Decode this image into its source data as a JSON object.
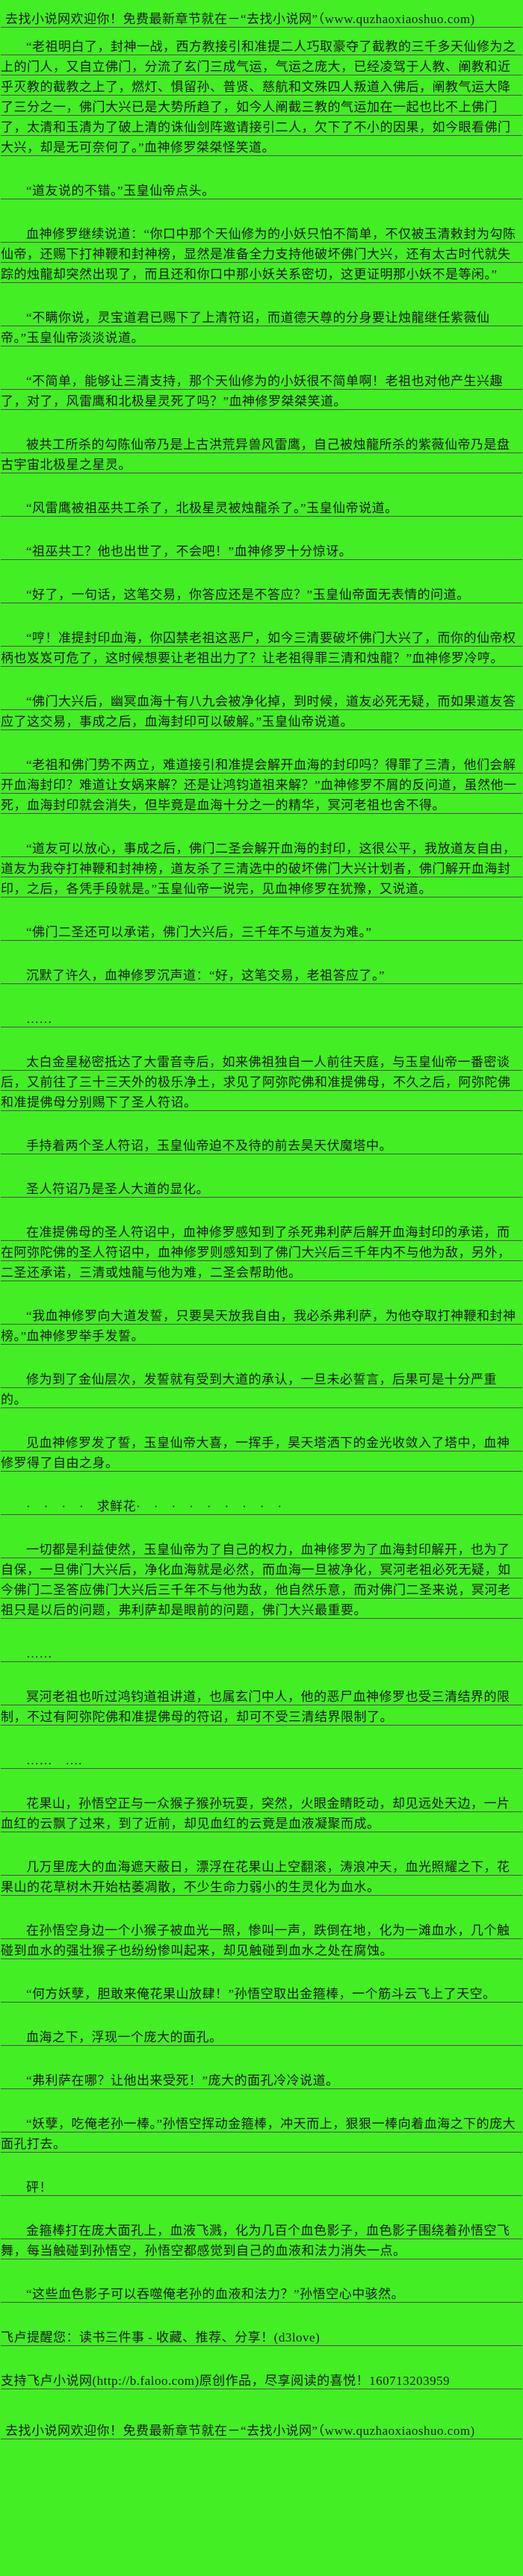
{
  "page": {
    "background_color": "#43ee24",
    "text_color": "#1c1c1c",
    "underline_color": "#4f4f4f"
  },
  "site_banner": {
    "text": "去找小说网欢迎你！免费最新章节就在－“去找小说网”（www.quzhaoxiaoshuo.com)"
  },
  "paragraphs": [
    {
      "indent": true,
      "text": "“老祖明白了，封神一战，西方教接引和准提二人巧取豪夺了截教的三千多天仙修为之上的门人，又自立佛门，分流了玄门三成气运，气运之庞大，已经凌驾于人教、阐教和近乎灭教的截教之上了，燃灯、惧留孙、普贤、慈航和文殊四人叛道入佛后，阐教气运大降了三分之一，佛门大兴已是大势所趋了，如今人阐截三教的气运加在一起也比不上佛门了，太清和玉清为了破上清的诛仙剑阵邀请接引二人，欠下了不小的因果，如今眼看佛门大兴，却是无可奈何了。”血神修罗桀桀怪笑道。"
    },
    {
      "indent": true,
      "text": "“道友说的不错。”玉皇仙帝点头。"
    },
    {
      "indent": true,
      "text": "血神修罗继续说道：“你口中那个天仙修为的小妖只怕不简单，不仅被玉清敕封为勾陈仙帝，还赐下打神鞭和封神榜，显然是准备全力支持他破坏佛门大兴，还有太古时代就失踪的烛龍却突然出现了，而且还和你口中那小妖关系密切，这更证明那小妖不是等闲。”"
    },
    {
      "indent": true,
      "text": "“不瞒你说，灵宝道君已赐下了上清符诏，而道德天尊的分身要让烛龍继任紫薇仙帝。”玉皇仙帝淡淡说道。"
    },
    {
      "indent": true,
      "text": "“不简单，能够让三清支持，那个天仙修为的小妖很不简单啊！老祖也对他产生兴趣了，对了，风雷鹰和北极星灵死了吗？”血神修罗桀桀笑道。"
    },
    {
      "indent": true,
      "text": "被共工所杀的勾陈仙帝乃是上古洪荒异兽风雷鹰，自己被烛龍所杀的紫薇仙帝乃是盘古宇宙北极星之星灵。"
    },
    {
      "indent": true,
      "text": "“风雷鹰被祖巫共工杀了，北极星灵被烛龍杀了。”玉皇仙帝说道。"
    },
    {
      "indent": true,
      "text": "“祖巫共工？他也出世了，不会吧！”血神修罗十分惊讶。"
    },
    {
      "indent": true,
      "text": "“好了，一句话，这笔交易，你答应还是不答应？”玉皇仙帝面无表情的问道。"
    },
    {
      "indent": true,
      "text": "“哼！准提封印血海，你囚禁老祖这恶尸，如今三清要破坏佛门大兴了，而你的仙帝权柄也岌岌可危了，这时候想要让老祖出力了？让老祖得罪三清和烛龍？”血神修罗冷哼。"
    },
    {
      "indent": true,
      "text": "“佛门大兴后，幽冥血海十有八九会被净化掉，到时候，道友必死无疑，而如果道友答应了这交易，事成之后，血海封印可以破解。”玉皇仙帝说道。"
    },
    {
      "indent": true,
      "text": "“老祖和佛门势不两立，难道接引和准提会解开血海的封印吗？得罪了三清，他们会解开血海封印？难道让女娲来解？还是让鸿钧道祖来解？”血神修罗不屑的反问道，虽然他一死，血海封印就会消失，但毕竟是血海十分之一的精华，冥河老祖也舍不得。"
    },
    {
      "indent": true,
      "text": "“道友可以放心，事成之后，佛门二圣会解开血海的封印，这很公平，我放道友自由，道友为我夺打神鞭和封神榜，道友杀了三清选中的破坏佛门大兴计划者，佛门解开血海封印，之后，各凭手段就是。”玉皇仙帝一说完，见血神修罗在犹豫，又说道。"
    },
    {
      "indent": true,
      "text": "“佛门二圣还可以承诺，佛门大兴后，三千年不与道友为难。”"
    },
    {
      "indent": true,
      "text": "沉默了许久，血神修罗沉声道：“好，这笔交易，老祖答应了。”"
    },
    {
      "indent": true,
      "text": "……"
    },
    {
      "indent": true,
      "text": "太白金星秘密抵达了大雷音寺后，如来佛祖独自一人前往天庭，与玉皇仙帝一番密谈后，又前往了三十三天外的极乐净土，求见了阿弥陀佛和准提佛母，不久之后，阿弥陀佛和准提佛母分别赐下了圣人符诏。"
    },
    {
      "indent": true,
      "text": "手持着两个圣人符诏，玉皇仙帝迫不及待的前去昊天伏魔塔中。"
    },
    {
      "indent": true,
      "text": "圣人符诏乃是圣人大道的显化。"
    },
    {
      "indent": true,
      "text": "在准提佛母的圣人符诏中，血神修罗感知到了杀死弗利萨后解开血海封印的承诺，而在阿弥陀佛的圣人符诏中，血神修罗则感知到了佛门大兴后三千年内不与他为敌，另外，二圣还承诺，三清或烛龍与他为难，二圣会帮助他。"
    },
    {
      "indent": true,
      "text": "“我血神修罗向大道发誓，只要昊天放我自由，我必杀弗利萨，为他夺取打神鞭和封神榜。”血神修罗举手发誓。"
    },
    {
      "indent": true,
      "text": "修为到了金仙层次，发誓就有受到大道的承认，一旦未必誓言，后果可是十分严重的。"
    },
    {
      "indent": true,
      "text": "见血神修罗发了誓，玉皇仙帝大喜，一挥手，昊天塔洒下的金光收敛入了塔中，血神修罗得了自由之身。"
    },
    {
      "indent": true,
      "text": "·　·　·　·　求鲜花·　·　·　·　·　·　·　·　·"
    },
    {
      "indent": true,
      "text": "一切都是利益使然，玉皇仙帝为了自己的权力，血神修罗为了血海封印解开，也为了自保，一旦佛门大兴后，净化血海就是必然，而血海一旦被净化，冥河老祖必死无疑，如今佛门二圣答应佛门大兴后三千年不与他为敌，他自然乐意，而对佛门二圣来说，冥河老祖只是以后的问题，弗利萨却是眼前的问题，佛门大兴最重要。"
    },
    {
      "indent": true,
      "text": "……"
    },
    {
      "indent": true,
      "text": "冥河老祖也听过鸿钧道祖讲道，也属玄门中人，他的恶尸血神修罗也受三清结界的限制，不过有阿弥陀佛和准提佛母的符诏，却可不受三清结界限制了。"
    },
    {
      "indent": true,
      "text": "……　…."
    },
    {
      "indent": true,
      "text": "花果山，孙悟空正与一众猴子猴孙玩耍，突然，火眼金睛眨动，却见远处天边，一片血红的云飘了过来，到了近前，却见血红的云竟是血液凝聚而成。"
    },
    {
      "indent": true,
      "text": "几万里庞大的血海遮天蔽日，漂浮在花果山上空翻滚，涛浪冲天，血光照耀之下，花果山的花草树木开始枯萎凋散，不少生命力弱小的生灵化为血水。"
    },
    {
      "indent": true,
      "text": "在孙悟空身边一个小猴子被血光一照，惨叫一声，跌倒在地，化为一滩血水，几个触碰到血水的强壮猴子也纷纷惨叫起来，却见触碰到血水之处在腐蚀。"
    },
    {
      "indent": true,
      "text": "“何方妖孽，胆敢来俺花果山放肆！”孙悟空取出金箍棒，一个筋斗云飞上了天空。"
    },
    {
      "indent": true,
      "text": "血海之下，浮现一个庞大的面孔。"
    },
    {
      "indent": true,
      "text": "“弗利萨在哪？让他出来受死！”庞大的面孔冷冷说道。"
    },
    {
      "indent": true,
      "text": "“妖孽，吃俺老孙一棒。”孙悟空挥动金箍棒，冲天而上，狠狠一棒向着血海之下的庞大面孔打去。"
    },
    {
      "indent": true,
      "text": "砰！"
    },
    {
      "indent": true,
      "text": "金箍棒打在庞大面孔上，血液飞溅，化为几百个血色影子，血色影子围绕着孙悟空飞舞，每当触碰到孙悟空，孙悟空都感觉到自己的血液和法力消失一点。"
    },
    {
      "indent": true,
      "text": "“这些血色影子可以吞噬俺老孙的血液和法力？”孙悟空心中骇然。"
    },
    {
      "indent": false,
      "text": "飞卢提醒您：读书三件事 - 收藏、推荐、分享！(d3love)"
    },
    {
      "indent": false,
      "text": "支持飞卢小说网(http://b.faloo.com)原创作品，尽享阅读的喜悦！160713203959"
    }
  ]
}
